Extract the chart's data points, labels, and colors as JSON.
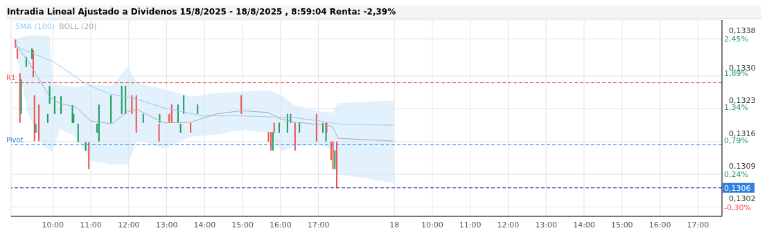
{
  "chart_data": {
    "type": "candlestick",
    "title": "Intradia Lineal Ajustado a Dividenos 15/8/2025 - 18/8/2025 , 8:59:04 Renta: -2,39%",
    "x": [
      "2025-08-15T09:01",
      "2025-08-15T09:04",
      "2025-08-15T09:08",
      "2025-08-15T09:10",
      "2025-08-15T09:18",
      "2025-08-15T09:27",
      "2025-08-15T09:29",
      "2025-08-15T09:31",
      "2025-08-15T09:33",
      "2025-08-15T09:38",
      "2025-08-15T09:52",
      "2025-08-15T09:55",
      "2025-08-15T10:03",
      "2025-08-15T10:13",
      "2025-08-15T10:31",
      "2025-08-15T10:33",
      "2025-08-15T10:40",
      "2025-08-15T10:52",
      "2025-08-15T10:57",
      "2025-08-15T11:10",
      "2025-08-15T11:13",
      "2025-08-15T11:32",
      "2025-08-15T11:49",
      "2025-08-15T11:55",
      "2025-08-15T12:05",
      "2025-08-15T12:12",
      "2025-08-15T12:23",
      "2025-08-15T12:48",
      "2025-08-15T12:49",
      "2025-08-15T13:04",
      "2025-08-15T13:08",
      "2025-08-15T13:18",
      "2025-08-15T13:22",
      "2025-08-15T13:27",
      "2025-08-15T13:38",
      "2025-08-15T13:49",
      "2025-08-15T14:58",
      "2025-08-15T15:41",
      "2025-08-15T15:45",
      "2025-08-15T15:48",
      "2025-08-15T15:50",
      "2025-08-15T15:58",
      "2025-08-15T16:11",
      "2025-08-15T16:16",
      "2025-08-15T16:23",
      "2025-08-15T16:30",
      "2025-08-15T16:57",
      "2025-08-15T17:07",
      "2025-08-15T17:12",
      "2025-08-15T17:13",
      "2025-08-15T17:20",
      "2025-08-15T17:23",
      "2025-08-15T17:26",
      "2025-08-15T17:29"
    ],
    "ohlc": [
      [
        0.13378,
        0.13378,
        0.13361,
        0.13361
      ],
      [
        0.13359,
        0.13359,
        0.13337,
        0.13337
      ],
      [
        0.13306,
        0.13306,
        0.132,
        0.132
      ],
      [
        0.13219,
        0.13293,
        0.13219,
        0.13293
      ],
      [
        0.1332,
        0.13341,
        0.1332,
        0.13341
      ],
      [
        0.13337,
        0.13359,
        0.13337,
        0.13359
      ],
      [
        0.13356,
        0.13356,
        0.13298,
        0.13298
      ],
      [
        0.13259,
        0.13259,
        0.13161,
        0.13161
      ],
      [
        0.13179,
        0.13198,
        0.13179,
        0.13198
      ],
      [
        0.13239,
        0.13239,
        0.13161,
        0.13161
      ],
      [
        0.132,
        0.13219,
        0.132,
        0.13219
      ],
      [
        0.13241,
        0.13279,
        0.13241,
        0.13279
      ],
      [
        0.13219,
        0.13257,
        0.13219,
        0.13257
      ],
      [
        0.13219,
        0.13257,
        0.13219,
        0.13257
      ],
      [
        0.132,
        0.13238,
        0.132,
        0.13238
      ],
      [
        0.132,
        0.13219,
        0.132,
        0.13219
      ],
      [
        0.13159,
        0.13198,
        0.13159,
        0.13198
      ],
      [
        0.13141,
        0.13159,
        0.13141,
        0.13159
      ],
      [
        0.13159,
        0.13159,
        0.13101,
        0.13101
      ],
      [
        0.13179,
        0.13198,
        0.13179,
        0.13198
      ],
      [
        0.1316,
        0.13239,
        0.1316,
        0.13239
      ],
      [
        0.132,
        0.13259,
        0.132,
        0.13259
      ],
      [
        0.13219,
        0.13279,
        0.13219,
        0.13279
      ],
      [
        0.13219,
        0.13279,
        0.13219,
        0.13279
      ],
      [
        0.13259,
        0.13259,
        0.13219,
        0.13219
      ],
      [
        0.13259,
        0.13259,
        0.13179,
        0.13179
      ],
      [
        0.132,
        0.13219,
        0.132,
        0.13219
      ],
      [
        0.13198,
        0.13198,
        0.1316,
        0.1316
      ],
      [
        0.132,
        0.13219,
        0.132,
        0.13219
      ],
      [
        0.13219,
        0.13219,
        0.132,
        0.132
      ],
      [
        0.13239,
        0.13239,
        0.132,
        0.132
      ],
      [
        0.132,
        0.13239,
        0.132,
        0.13239
      ],
      [
        0.13179,
        0.13198,
        0.13179,
        0.13198
      ],
      [
        0.13219,
        0.13259,
        0.13219,
        0.13259
      ],
      [
        0.132,
        0.132,
        0.13179,
        0.13179
      ],
      [
        0.13219,
        0.13239,
        0.13219,
        0.13239
      ],
      [
        0.13259,
        0.13259,
        0.13219,
        0.13219
      ],
      [
        0.1318,
        0.1318,
        0.1316,
        0.1316
      ],
      [
        0.1318,
        0.1318,
        0.13141,
        0.13141
      ],
      [
        0.13141,
        0.1318,
        0.13141,
        0.1318
      ],
      [
        0.132,
        0.132,
        0.13179,
        0.13179
      ],
      [
        0.13179,
        0.132,
        0.13179,
        0.132
      ],
      [
        0.13179,
        0.13219,
        0.13179,
        0.13219
      ],
      [
        0.132,
        0.13219,
        0.132,
        0.13219
      ],
      [
        0.132,
        0.132,
        0.13141,
        0.13141
      ],
      [
        0.13179,
        0.132,
        0.13179,
        0.132
      ],
      [
        0.13219,
        0.13219,
        0.1316,
        0.1316
      ],
      [
        0.13179,
        0.132,
        0.13179,
        0.132
      ],
      [
        0.1316,
        0.132,
        0.1316,
        0.132
      ],
      [
        0.132,
        0.132,
        0.13179,
        0.13179
      ],
      [
        0.1316,
        0.1316,
        0.1312,
        0.1312
      ],
      [
        0.1316,
        0.1316,
        0.13101,
        0.13101
      ],
      [
        0.13101,
        0.13141,
        0.13101,
        0.13141
      ],
      [
        0.1316,
        0.1316,
        0.13061,
        0.13061
      ]
    ],
    "colors": [
      "#f05252",
      "#f05252",
      "#f05252",
      "#1e9e5e",
      "#1e9e5e",
      "#1e9e5e",
      "#f05252",
      "#f05252",
      "#1e9e5e",
      "#f05252",
      "#1e9e5e",
      "#1e9e5e",
      "#1e9e5e",
      "#1e9e5e",
      "#1e9e5e",
      "#1e9e5e",
      "#1e9e5e",
      "#1e9e5e",
      "#f05252",
      "#1e9e5e",
      "#1e9e5e",
      "#1e9e5e",
      "#1e9e5e",
      "#1e9e5e",
      "#f05252",
      "#f05252",
      "#1e9e5e",
      "#f05252",
      "#1e9e5e",
      "#f05252",
      "#f05252",
      "#1e9e5e",
      "#1e9e5e",
      "#1e9e5e",
      "#f05252",
      "#1e9e5e",
      "#f05252",
      "#f05252",
      "#f05252",
      "#1e9e5e",
      "#f05252",
      "#1e9e5e",
      "#1e9e5e",
      "#1e9e5e",
      "#f05252",
      "#1e9e5e",
      "#f05252",
      "#1e9e5e",
      "#1e9e5e",
      "#f05252",
      "#f05252",
      "#f05252",
      "#1e9e5e",
      "#f05252"
    ],
    "series": [
      {
        "name": "SMA (100)",
        "type": "line",
        "color": "#90caf9",
        "x": [
          "2025-08-15T09:01",
          "2025-08-15T10:02",
          "2025-08-15T10:48",
          "2025-08-15T11:04",
          "2025-08-15T11:33",
          "2025-08-15T12:07",
          "2025-08-15T12:56",
          "2025-08-15T13:57",
          "2025-08-15T14:59",
          "2025-08-15T15:41",
          "2025-08-15T16:22",
          "2025-08-15T17:03",
          "2025-08-15T17:35",
          "2025-08-15T18:59"
        ],
        "values": [
          0.13364,
          0.1333,
          0.13287,
          0.13276,
          0.13261,
          0.13253,
          0.13232,
          0.13215,
          0.13215,
          0.13213,
          0.13211,
          0.13204,
          0.13197,
          0.13195
        ]
      },
      {
        "name": "BOLL (20)",
        "type": "line",
        "color": "#ababab",
        "x": [
          "2025-08-15T09:01",
          "2025-08-15T09:20",
          "2025-08-15T09:42",
          "2025-08-15T09:55",
          "2025-08-15T10:00",
          "2025-08-15T10:11",
          "2025-08-15T10:35",
          "2025-08-15T11:00",
          "2025-08-15T11:33",
          "2025-08-15T11:58",
          "2025-08-15T12:14",
          "2025-08-15T12:56",
          "2025-08-15T13:37",
          "2025-08-15T14:18",
          "2025-08-15T14:59",
          "2025-08-15T15:41",
          "2025-08-15T16:01",
          "2025-08-15T16:22",
          "2025-08-15T17:03",
          "2025-08-15T17:22",
          "2025-08-15T17:31",
          "2025-08-15T18:59"
        ],
        "values": [
          0.13368,
          0.13334,
          0.13285,
          0.13256,
          0.13252,
          0.13241,
          0.13235,
          0.13204,
          0.13198,
          0.13224,
          0.13228,
          0.132,
          0.13201,
          0.13219,
          0.13226,
          0.13222,
          0.13208,
          0.13202,
          0.13196,
          0.13193,
          0.13167,
          0.13161
        ],
        "upper": [
          0.13378,
          0.13387,
          0.13387,
          0.13385,
          0.13282,
          0.13282,
          0.13276,
          0.13282,
          0.13279,
          0.13319,
          0.13285,
          0.13272,
          0.13256,
          0.13264,
          0.13267,
          0.1327,
          0.13259,
          0.13238,
          0.13224,
          0.13222,
          0.13242,
          0.13248
        ],
        "lower": [
          0.13359,
          0.13224,
          0.13156,
          0.13139,
          0.13139,
          0.13187,
          0.13172,
          0.13119,
          0.13111,
          0.13111,
          0.13163,
          0.13145,
          0.1317,
          0.13175,
          0.13185,
          0.13179,
          0.13139,
          0.1315,
          0.13153,
          0.13142,
          0.1309,
          0.13072
        ]
      }
    ],
    "xlim": [
      "2025-08-15T08:54",
      "2025-08-16T03:38"
    ],
    "xticks": [
      {
        "value": "2025-08-15T10:00",
        "label": "10:00"
      },
      {
        "value": "2025-08-15T11:00",
        "label": "11:00"
      },
      {
        "value": "2025-08-15T12:00",
        "label": "12:00"
      },
      {
        "value": "2025-08-15T13:00",
        "label": "13:00"
      },
      {
        "value": "2025-08-15T14:00",
        "label": "14:00"
      },
      {
        "value": "2025-08-15T15:00",
        "label": "15:00"
      },
      {
        "value": "2025-08-15T16:00",
        "label": "16:00"
      },
      {
        "value": "2025-08-15T17:00",
        "label": "17:00"
      }
    ],
    "x2lim": [
      "2025-08-17T22:54",
      "2025-08-18T17:38"
    ],
    "x2ticks": [
      {
        "value": "2025-08-18T09:00",
        "label": "18"
      },
      {
        "value": "2025-08-18T10:00",
        "label": "10:00"
      },
      {
        "value": "2025-08-18T11:00",
        "label": "11:00"
      },
      {
        "value": "2025-08-18T12:00",
        "label": "12:00"
      },
      {
        "value": "2025-08-18T13:00",
        "label": "13:00"
      },
      {
        "value": "2025-08-18T14:00",
        "label": "14:00"
      },
      {
        "value": "2025-08-18T15:00",
        "label": "15:00"
      },
      {
        "value": "2025-08-18T16:00",
        "label": "16:00"
      },
      {
        "value": "2025-08-18T17:00",
        "label": "17:00"
      }
    ],
    "ylim": [
      0.13,
      0.1342
    ],
    "yticks": [
      {
        "value": 0.1338,
        "label": "0,1338"
      },
      {
        "value": 0.133,
        "label": "0,1330"
      },
      {
        "value": 0.1323,
        "label": "0,1323"
      },
      {
        "value": 0.1316,
        "label": "0,1316"
      },
      {
        "value": 0.1309,
        "label": "0,1309"
      },
      {
        "value": 0.1302,
        "label": "0,1302"
      }
    ],
    "y2lim": [
      -0.45,
      2.76
    ],
    "y2ticks": [
      {
        "value": 2.45,
        "label": "2,45%"
      },
      {
        "value": 1.89,
        "label": "1,89%"
      },
      {
        "value": 1.34,
        "label": "1,34%"
      },
      {
        "value": 0.79,
        "label": "0,79%"
      },
      {
        "value": 0.24,
        "label": "0,24%"
      },
      {
        "value": -0.3,
        "label": "-0,30%"
      }
    ],
    "ref_lines": [
      {
        "axis": "y",
        "value": 0.13286,
        "label": "R1",
        "color": "#f05252",
        "line_style": "dashed"
      },
      {
        "axis": "y",
        "value": 0.13153,
        "label": "Pivot",
        "color": "#2f80e0",
        "line_style": "dashed"
      },
      {
        "axis": "y",
        "value": 0.13061,
        "label": "0,1306",
        "color": "#1a1ab0",
        "line_style": "dashed"
      }
    ],
    "grid": true,
    "legend": "top left",
    "marker": "none",
    "line_style": "solid"
  }
}
